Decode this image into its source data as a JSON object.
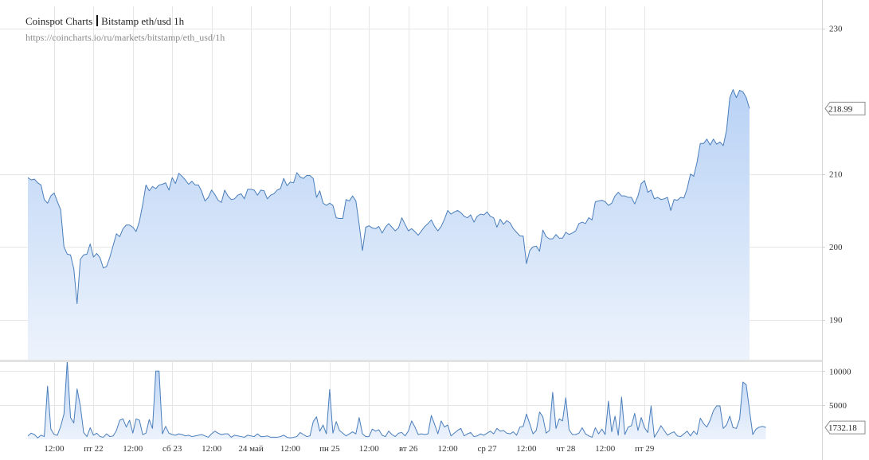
{
  "header": {
    "brand": "Coinspot Charts",
    "market": "Bitstamp  eth/usd  1h",
    "url": "https://coincharts.io/ru/markets/bitstamp/eth_usd/1h"
  },
  "colors": {
    "line": "#4a7ebb",
    "fill_top": "#b9d2f5",
    "fill_bottom": "#edf3fc",
    "grid": "#e6e6e6",
    "axis_text": "#333333"
  },
  "chart_data": [
    {
      "type": "area",
      "name": "price",
      "ylim": [
        184.5,
        231.5
      ],
      "y_ticks": [
        190,
        200,
        210,
        230
      ],
      "y_tick_labels": [
        "190",
        "200",
        "210",
        "230"
      ],
      "grid": true,
      "last_value_label": "218.99",
      "values": [
        209.5,
        209.2,
        209.3,
        208.8,
        208.5,
        206.5,
        206.0,
        207.0,
        207.4,
        206.2,
        205.1,
        200.0,
        199.0,
        198.9,
        197.0,
        192.2,
        198.3,
        198.9,
        199.0,
        200.4,
        198.6,
        199.1,
        198.5,
        197.1,
        197.3,
        198.6,
        200.2,
        201.8,
        201.4,
        202.5,
        203.0,
        203.0,
        202.7,
        202.1,
        203.5,
        205.8,
        208.5,
        207.7,
        208.3,
        208.0,
        208.5,
        208.6,
        208.8,
        207.8,
        209.5,
        208.7,
        210.1,
        209.7,
        209.2,
        208.6,
        209.0,
        208.5,
        208.5,
        207.6,
        206.3,
        206.8,
        207.8,
        207.2,
        206.4,
        206.1,
        207.8,
        207.0,
        206.5,
        206.6,
        207.1,
        207.3,
        206.6,
        207.9,
        207.9,
        207.8,
        207.1,
        207.8,
        207.7,
        206.6,
        207.1,
        207.3,
        207.8,
        208.0,
        209.4,
        208.4,
        208.9,
        208.8,
        210.2,
        209.6,
        209.4,
        209.8,
        209.8,
        209.4,
        206.8,
        207.7,
        206.0,
        205.7,
        206.0,
        205.7,
        204.0,
        203.9,
        203.9,
        206.5,
        206.3,
        207.0,
        206.3,
        203.1,
        199.5,
        202.7,
        202.9,
        202.6,
        202.5,
        202.8,
        201.9,
        202.7,
        203.2,
        202.7,
        202.2,
        202.6,
        204.0,
        203.1,
        202.2,
        202.5,
        202.1,
        201.6,
        202.2,
        202.8,
        203.2,
        203.7,
        202.8,
        202.2,
        202.8,
        203.8,
        205.0,
        204.5,
        204.8,
        205.0,
        204.7,
        204.2,
        204.0,
        204.4,
        203.4,
        204.2,
        204.5,
        204.4,
        204.8,
        204.2,
        204.0,
        202.7,
        203.8,
        203.1,
        203.6,
        203.3,
        202.5,
        202.0,
        201.5,
        201.5,
        197.7,
        199.5,
        200.0,
        200.1,
        199.4,
        202.3,
        201.4,
        201.1,
        201.1,
        201.7,
        201.2,
        201.2,
        202.0,
        201.7,
        201.9,
        202.2,
        203.2,
        203.4,
        203.2,
        204.0,
        203.7,
        206.2,
        206.3,
        206.4,
        206.2,
        205.7,
        206.0,
        207.0,
        207.5,
        207.0,
        207.0,
        206.8,
        206.8,
        205.9,
        207.0,
        208.7,
        209.1,
        207.5,
        207.8,
        206.6,
        206.8,
        206.5,
        206.6,
        206.8,
        205.0,
        206.5,
        206.4,
        206.8,
        206.7,
        208.0,
        210.0,
        209.7,
        211.6,
        214.2,
        214.2,
        214.8,
        214.0,
        214.8,
        214.1,
        214.4,
        213.9,
        216.0,
        220.5,
        221.6,
        220.5,
        221.5,
        221.3,
        220.5,
        219.0
      ]
    },
    {
      "type": "area",
      "name": "volume",
      "ylim": [
        0,
        11200
      ],
      "y_ticks": [
        5000,
        10000
      ],
      "y_tick_labels": [
        "5000",
        "10000"
      ],
      "grid": true,
      "last_value_label": "1732.18",
      "values": [
        500,
        900,
        700,
        200,
        600,
        400,
        7800,
        1500,
        700,
        600,
        1900,
        3700,
        11500,
        3200,
        2400,
        7400,
        4900,
        1000,
        400,
        1700,
        600,
        900,
        400,
        300,
        800,
        400,
        500,
        1300,
        2800,
        3000,
        1800,
        2800,
        900,
        3000,
        2800,
        700,
        900,
        2900,
        1600,
        10000,
        10000,
        800,
        1900,
        900,
        700,
        600,
        800,
        700,
        500,
        600,
        400,
        500,
        600,
        700,
        500,
        300,
        800,
        1200,
        900,
        700,
        800,
        800,
        300,
        600,
        500,
        400,
        300,
        600,
        500,
        400,
        800,
        400,
        400,
        500,
        300,
        300,
        300,
        400,
        600,
        300,
        200,
        300,
        400,
        1000,
        700,
        400,
        500,
        2600,
        3300,
        1200,
        2100,
        800,
        7300,
        900,
        2600,
        1300,
        900,
        500,
        800,
        1100,
        800,
        3200,
        800,
        400,
        400,
        1500,
        1200,
        1400,
        600,
        400,
        1200,
        700,
        400,
        900,
        1000,
        500,
        1200,
        2700,
        1800,
        700,
        800,
        700,
        800,
        3500,
        2200,
        800,
        2700,
        1800,
        2100,
        500,
        900,
        1300,
        1600,
        500,
        800,
        1000,
        400,
        500,
        800,
        600,
        900,
        1200,
        800,
        1600,
        1200,
        1300,
        900,
        800,
        1100,
        600,
        1800,
        1900,
        3700,
        2300,
        800,
        1300,
        4000,
        3300,
        900,
        1300,
        6900,
        1600,
        3000,
        2700,
        6100,
        1400,
        700,
        700,
        900,
        1700,
        800,
        500,
        300,
        1700,
        800,
        1500,
        700,
        5600,
        1100,
        3400,
        600,
        6200,
        700,
        1800,
        2000,
        3800,
        1300,
        3200,
        1700,
        1000,
        4900,
        300,
        1100,
        2000,
        1300,
        600,
        900,
        1100,
        500,
        400,
        800,
        1200,
        500,
        1200,
        700,
        3100,
        2300,
        1800,
        2800,
        4200,
        4900,
        4900,
        1600,
        2100,
        3400,
        1700,
        1600,
        3000,
        8400,
        8000,
        4300,
        700,
        1500,
        1800,
        1900,
        1732
      ]
    }
  ],
  "x_axis": {
    "tick_labels": [
      "12:00",
      "пт 22",
      "12:00",
      "сб 23",
      "12:00",
      "24 май",
      "12:00",
      "пн 25",
      "12:00",
      "вт 26",
      "12:00",
      "ср 27",
      "12:00",
      "чт 28",
      "12:00",
      "пт 29"
    ],
    "tick_positions": [
      8,
      20,
      32,
      44,
      56,
      68,
      80,
      92,
      104,
      116,
      128,
      140,
      152,
      164,
      176,
      188
    ]
  }
}
